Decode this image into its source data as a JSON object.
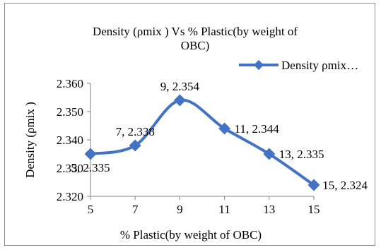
{
  "chart_data": {
    "type": "line",
    "title": "Density (ρmix ) Vs  % Plastic(by weight of OBC)",
    "title_lines": [
      "Density (ρmix ) Vs  % Plastic(by weight of",
      "OBC)"
    ],
    "xlabel": "% Plastic(by weight of OBC)",
    "ylabel": "Density (ρmix )",
    "x_ticks": [
      "5",
      "7",
      "9",
      "11",
      "13",
      "15"
    ],
    "y_ticks": [
      "2.320",
      "2.330",
      "2.340",
      "2.350",
      "2.360"
    ],
    "xlim": [
      5,
      15
    ],
    "ylim": [
      2.32,
      2.36
    ],
    "grid": false,
    "legend": "top-right",
    "series": [
      {
        "name": "Density ρmix…",
        "color": "#4472c4",
        "smooth": true,
        "marker": "diamond",
        "x": [
          5,
          7,
          9,
          11,
          13,
          15
        ],
        "y": [
          2.335,
          2.338,
          2.354,
          2.344,
          2.335,
          2.324
        ],
        "labels": [
          "5, 2.335",
          "7, 2.338",
          "9, 2.354",
          "11, 2.344",
          "13, 2.335",
          "15, 2.324"
        ],
        "label_positions": [
          "below",
          "above",
          "above",
          "right",
          "right",
          "right"
        ]
      }
    ]
  }
}
